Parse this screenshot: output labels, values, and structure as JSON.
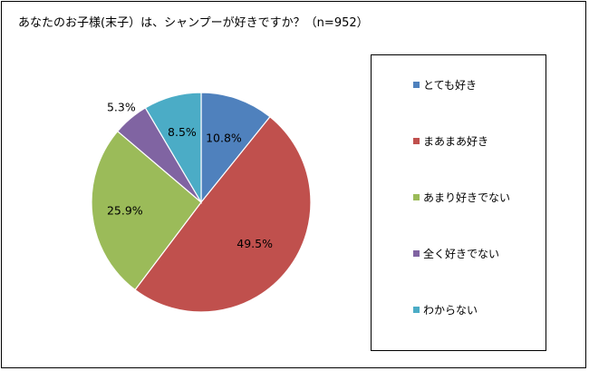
{
  "title": "あなたのお子様(末子）は、シャンプーが好きですか？（n=952）",
  "chart_data": {
    "type": "pie",
    "start_angle_deg": 90,
    "direction": "clockwise",
    "slices": [
      {
        "label": "とても好き",
        "value": 10.8,
        "value_label": "10.8%",
        "color": "#4f81bd"
      },
      {
        "label": "まあまあ好き",
        "value": 49.5,
        "value_label": "49.5%",
        "color": "#c0504d"
      },
      {
        "label": "あまり好きでない",
        "value": 25.9,
        "value_label": "25.9%",
        "color": "#9bbb59"
      },
      {
        "label": "全く好きでない",
        "value": 5.3,
        "value_label": "5.3%",
        "color": "#8064a2"
      },
      {
        "label": "わからない",
        "value": 8.5,
        "value_label": "8.5%",
        "color": "#4bacc6"
      }
    ],
    "legend_position": "right"
  }
}
